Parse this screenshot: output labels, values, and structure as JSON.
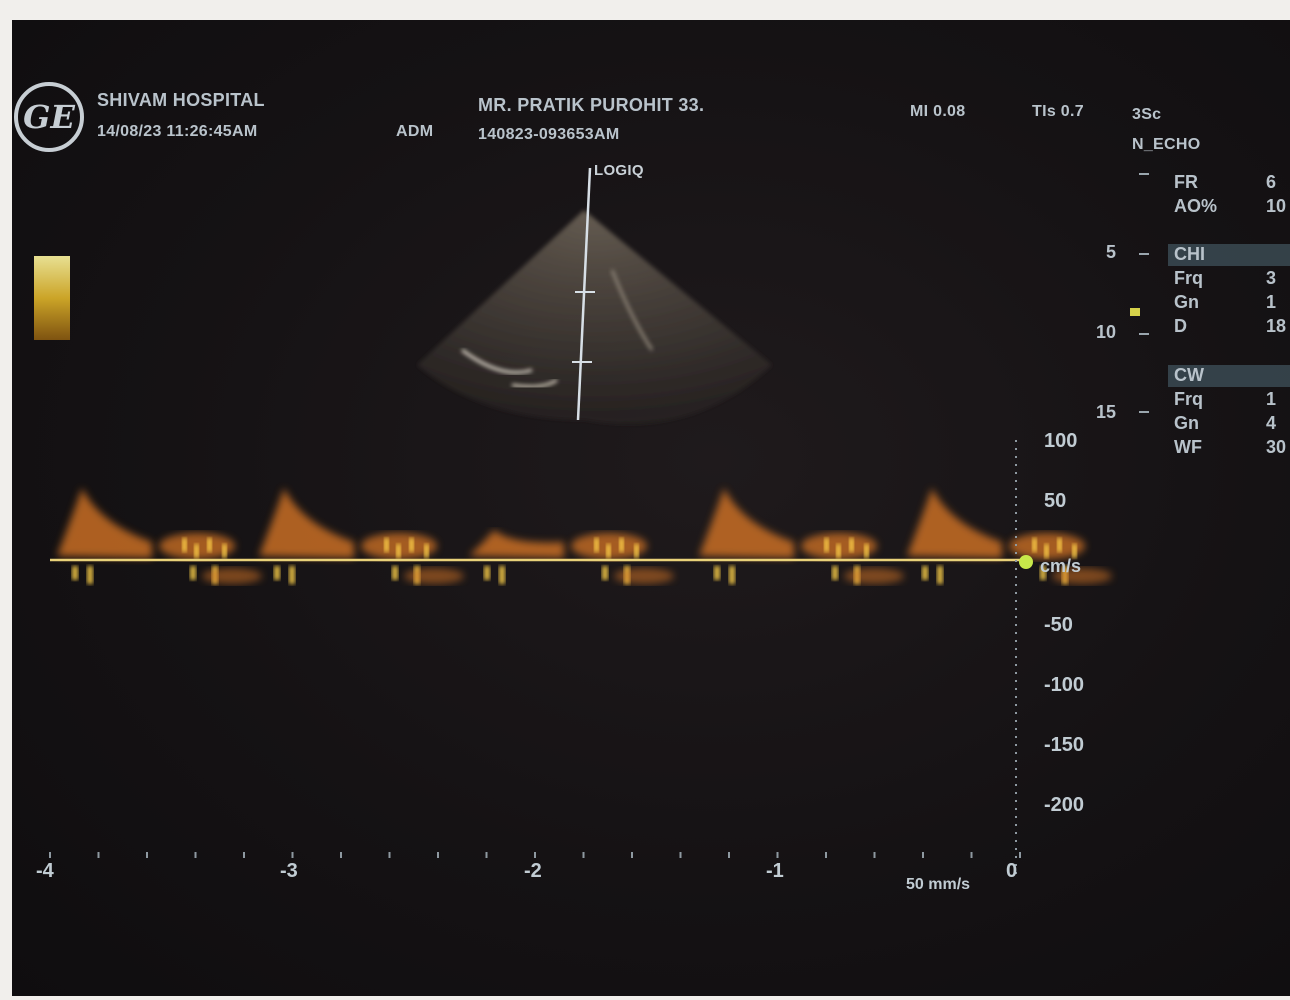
{
  "header": {
    "hospital": "SHIVAM HOSPITAL",
    "datetime": "14/08/23 11:26:45AM",
    "operator": "ADM",
    "patient": "MR. PRATIK PUROHIT 33.",
    "exam_id": "140823-093653AM",
    "mi": "MI 0.08",
    "tis": "TIs 0.7",
    "probe": "3Sc",
    "preset": "N_ECHO"
  },
  "logo": {
    "text": "GE"
  },
  "probe_view": {
    "label": "LOGIQ"
  },
  "depth_scale": {
    "ticks": [
      "5",
      "10",
      "15"
    ]
  },
  "params": [
    {
      "label": "FR",
      "value": "6"
    },
    {
      "label": "AO%",
      "value": "10"
    },
    {
      "label": "CHI",
      "value": ""
    },
    {
      "label": "Frq",
      "value": "3"
    },
    {
      "label": "Gn",
      "value": "1"
    },
    {
      "label": "D",
      "value": "18"
    },
    {
      "label": "CW",
      "value": ""
    },
    {
      "label": "Frq",
      "value": "1"
    },
    {
      "label": "Gn",
      "value": "4"
    },
    {
      "label": "WF",
      "value": "30"
    }
  ],
  "velocity_scale": {
    "unit": "cm/s",
    "ticks": [
      "100",
      "50",
      "-50",
      "-100",
      "-150",
      "-200"
    ]
  },
  "time_axis": {
    "ticks": [
      "-4",
      "-3",
      "-2",
      "-1",
      "0"
    ],
    "sweep": "50 mm/s"
  },
  "colors": {
    "screen_bg": "#151214",
    "doppler_warm": "#e07a28",
    "doppler_bright": "#ffd24a",
    "baseline": "#e9d27a",
    "marker_green": "#c8e84a",
    "text": "#b9c3cb"
  }
}
